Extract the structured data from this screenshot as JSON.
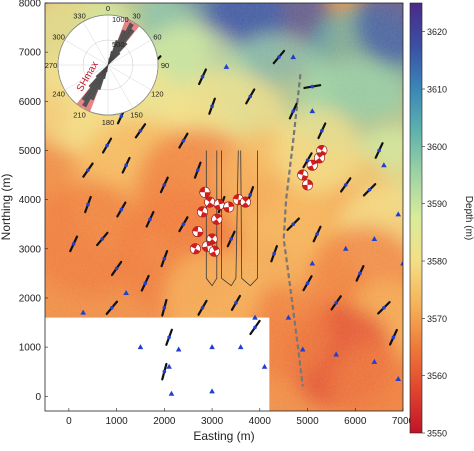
{
  "chart_data": {
    "type": "heatmap",
    "title": "",
    "xlabel": "Easting (m)",
    "ylabel": "Northing (m)",
    "colorbar_label": "Depth (m)",
    "xlim": [
      -500,
      7000
    ],
    "ylim": [
      -300,
      8000
    ],
    "x_ticks": [
      "0",
      "1000",
      "2000",
      "3000",
      "4000",
      "5000",
      "6000",
      "7000"
    ],
    "y_ticks": [
      "0",
      "1000",
      "2000",
      "3000",
      "4000",
      "5000",
      "6000",
      "7000",
      "8000"
    ],
    "colorbar_range": [
      3550,
      3625
    ],
    "colorbar_ticks": [
      "3550",
      "3560",
      "3570",
      "3580",
      "3590",
      "3600",
      "3610",
      "3620"
    ],
    "colormap": [
      "#c0142a",
      "#e0452e",
      "#ef7a3a",
      "#f5b45a",
      "#f3df85",
      "#d9ec9a",
      "#9fd4a4",
      "#5fb3ac",
      "#3a87b8",
      "#3b4fa4",
      "#4a2a88"
    ],
    "masked_region": {
      "x": [
        -500,
        4200
      ],
      "y": [
        -300,
        1600
      ]
    },
    "rose": {
      "label": "SHmax",
      "azimuth_ticks": [
        "0",
        "30",
        "60",
        "90",
        "120",
        "150",
        "180",
        "210",
        "240",
        "270",
        "300",
        "330"
      ],
      "radial_ticks": [
        "500",
        "1000"
      ],
      "dominant_azimuth_deg": 30,
      "wedge_color": "#e07070",
      "petal_color": "#555555"
    },
    "stations": [
      [
        3300,
        6700
      ],
      [
        4700,
        6900
      ],
      [
        5100,
        5800
      ],
      [
        6600,
        4700
      ],
      [
        6900,
        3700
      ],
      [
        6400,
        3200
      ],
      [
        7000,
        2700
      ],
      [
        5800,
        3000
      ],
      [
        5100,
        2700
      ],
      [
        4600,
        1600
      ],
      [
        4900,
        950
      ],
      [
        5600,
        850
      ],
      [
        6400,
        700
      ],
      [
        6900,
        350
      ],
      [
        2300,
        950
      ],
      [
        1500,
        1000
      ],
      [
        3000,
        1000
      ],
      [
        3600,
        1000
      ],
      [
        4100,
        600
      ],
      [
        2100,
        600
      ],
      [
        2150,
        50
      ],
      [
        3000,
        100
      ],
      [
        3900,
        1600
      ],
      [
        300,
        1700
      ],
      [
        1200,
        2100
      ]
    ],
    "stress_bars": [
      [
        1050,
        6000,
        35
      ],
      [
        1800,
        6800,
        45
      ],
      [
        1100,
        5700,
        25
      ],
      [
        2800,
        6500,
        25
      ],
      [
        3000,
        5900,
        20
      ],
      [
        3800,
        6100,
        30
      ],
      [
        4400,
        6900,
        40
      ],
      [
        5100,
        6300,
        80
      ],
      [
        4700,
        5800,
        25
      ],
      [
        400,
        4600,
        35
      ],
      [
        800,
        5100,
        30
      ],
      [
        1500,
        5400,
        35
      ],
      [
        1200,
        4700,
        25
      ],
      [
        2400,
        5200,
        30
      ],
      [
        2700,
        4600,
        20
      ],
      [
        2000,
        4300,
        25
      ],
      [
        5000,
        4800,
        30
      ],
      [
        5300,
        5400,
        25
      ],
      [
        5800,
        4300,
        35
      ],
      [
        6300,
        4200,
        45
      ],
      [
        6500,
        5000,
        25
      ],
      [
        400,
        3900,
        20
      ],
      [
        100,
        3100,
        25
      ],
      [
        1100,
        3800,
        30
      ],
      [
        700,
        3200,
        40
      ],
      [
        1700,
        3600,
        25
      ],
      [
        2000,
        2800,
        20
      ],
      [
        1600,
        2300,
        25
      ],
      [
        1000,
        2600,
        35
      ],
      [
        2000,
        1800,
        15
      ],
      [
        2400,
        3500,
        30
      ],
      [
        3200,
        3900,
        20
      ],
      [
        3400,
        3200,
        25
      ],
      [
        3800,
        4100,
        20
      ],
      [
        4700,
        3500,
        45
      ],
      [
        5200,
        3300,
        25
      ],
      [
        5000,
        2300,
        30
      ],
      [
        5600,
        1900,
        35
      ],
      [
        6100,
        2500,
        25
      ],
      [
        6600,
        1800,
        45
      ],
      [
        6800,
        1200,
        25
      ],
      [
        4300,
        2900,
        20
      ],
      [
        3500,
        1900,
        30
      ],
      [
        2800,
        1800,
        30
      ],
      [
        3900,
        1400,
        35
      ],
      [
        2100,
        1200,
        20
      ],
      [
        2000,
        500,
        15
      ],
      [
        900,
        1800,
        40
      ]
    ],
    "well_paths": [
      [
        [
          2880,
          5000
        ],
        [
          2880,
          2400
        ],
        [
          3000,
          2250
        ],
        [
          3100,
          2400
        ],
        [
          3100,
          5000
        ]
      ],
      [
        [
          3200,
          5000
        ],
        [
          3200,
          2400
        ],
        [
          3400,
          2250
        ],
        [
          3500,
          2400
        ],
        [
          3550,
          5000
        ]
      ],
      [
        [
          3600,
          5000
        ],
        [
          3620,
          2400
        ],
        [
          3800,
          2250
        ],
        [
          3950,
          2400
        ],
        [
          3950,
          5000
        ]
      ]
    ],
    "fault_trace": [
      [
        4850,
        6550
      ],
      [
        4700,
        5200
      ],
      [
        4550,
        4000
      ],
      [
        4500,
        3200
      ],
      [
        4600,
        2500
      ],
      [
        4800,
        1000
      ],
      [
        4900,
        200
      ]
    ],
    "focal_mechanisms": [
      [
        2850,
        4150
      ],
      [
        2950,
        3950
      ],
      [
        3150,
        3900
      ],
      [
        2800,
        3750
      ],
      [
        3100,
        3600
      ],
      [
        2700,
        3350
      ],
      [
        3000,
        3200
      ],
      [
        2900,
        3050
      ],
      [
        2650,
        3000
      ],
      [
        3050,
        2950
      ],
      [
        3550,
        4000
      ],
      [
        3700,
        3950
      ],
      [
        3350,
        3850
      ],
      [
        5300,
        5000
      ],
      [
        5100,
        4700
      ],
      [
        4900,
        4500
      ],
      [
        5250,
        4850
      ],
      [
        5000,
        4300
      ]
    ]
  }
}
